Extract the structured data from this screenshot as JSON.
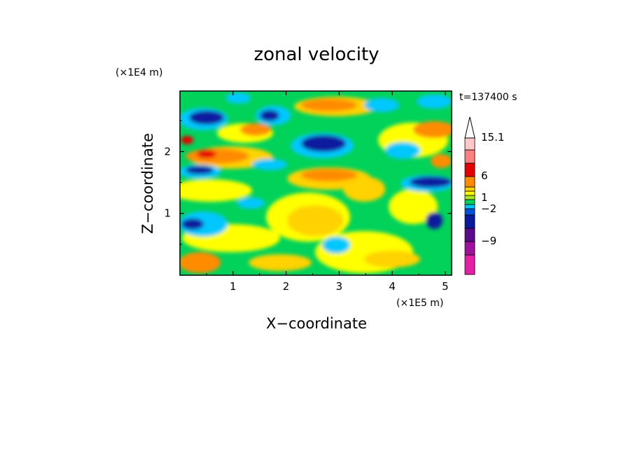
{
  "chart_data": {
    "type": "heatmap",
    "title": "zonal velocity",
    "xlabel": "X−coordinate",
    "ylabel": "Z−coordinate",
    "x_unit": "(×1E5 m)",
    "y_unit": "(×1E4 m)",
    "time_label": "t=137400 s",
    "xlim": [
      0,
      5.12
    ],
    "ylim": [
      0,
      2.98
    ],
    "x_ticks": [
      "1",
      "2",
      "3",
      "4",
      "5"
    ],
    "y_ticks": [
      "1",
      "2"
    ],
    "colorbar": {
      "labels": [
        "15.1",
        "6",
        "1",
        "−2",
        "−9"
      ],
      "levels": [
        -12,
        -9,
        -6,
        -3,
        -2,
        -1,
        0,
        1,
        2,
        3,
        6,
        9,
        12,
        15.1
      ],
      "colors": [
        "#e61ea8",
        "#a0129e",
        "#5a0a8a",
        "#0a1a9e",
        "#0050d8",
        "#00c8ff",
        "#00d25a",
        "#a8e620",
        "#ffff00",
        "#ffd200",
        "#ff8c00",
        "#e60000",
        "#ff8080",
        "#ffc8c8"
      ],
      "extend_top": true
    }
  }
}
